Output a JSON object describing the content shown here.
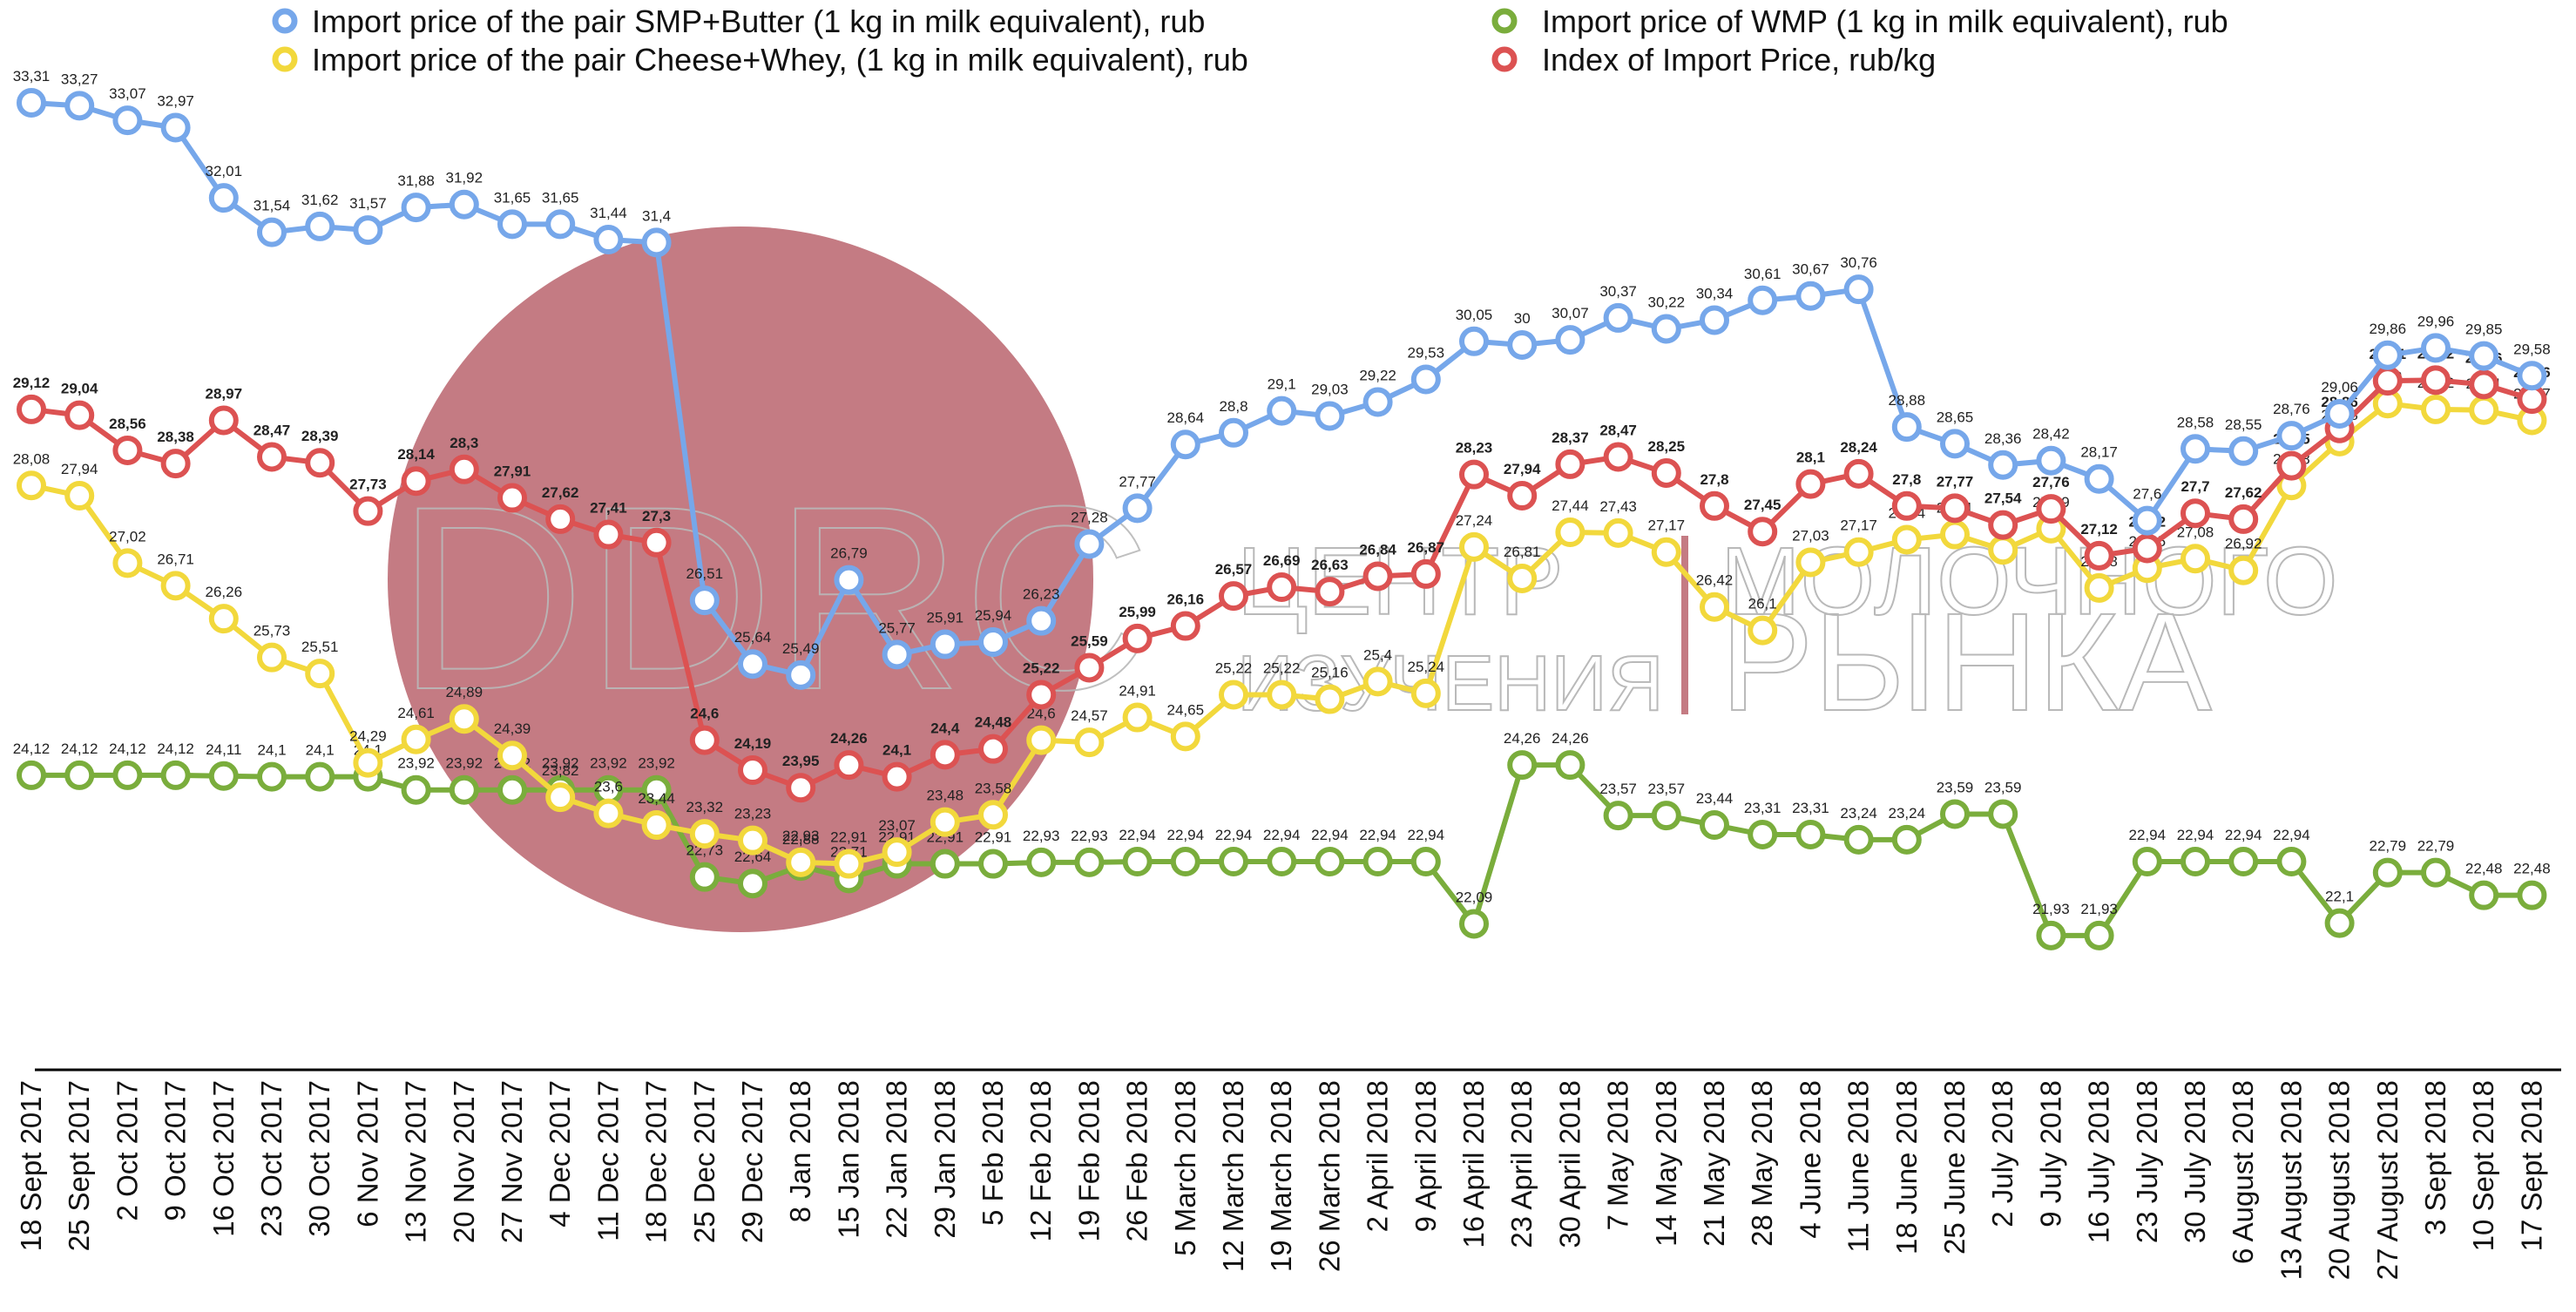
{
  "chart_data": {
    "type": "line",
    "title": "",
    "xlabel": "",
    "ylabel": "",
    "ylim": [
      21.5,
      34
    ],
    "grid": false,
    "legend_position": "top",
    "categories": [
      "18 Sept 2017",
      "25 Sept 2017",
      "2 Oct 2017",
      "9 Oct 2017",
      "16 Oct 2017",
      "23 Oct 2017",
      "30 Oct 2017",
      "6 Nov 2017",
      "13 Nov 2017",
      "20 Nov 2017",
      "27 Nov 2017",
      "4 Dec 2017",
      "11 Dec 2017",
      "18 Dec 2017",
      "25 Dec 2017",
      "29 Dec 2017",
      "8 Jan 2018",
      "15 Jan 2018",
      "22 Jan 2018",
      "29 Jan 2018",
      "5 Feb 2018",
      "12 Feb 2018",
      "19 Feb 2018",
      "26 Feb 2018",
      "5 March 2018",
      "12 March 2018",
      "19 March 2018",
      "26 March 2018",
      "2 April 2018",
      "9 April 2018",
      "16 April 2018",
      "23 April 2018",
      "30 April 2018",
      "7 May 2018",
      "14 May 2018",
      "21 May 2018",
      "28 May 2018",
      "4 June 2018",
      "11 June 2018",
      "18 June 2018",
      "25 June 2018",
      "2 July 2018",
      "9 July 2018",
      "16 July 2018",
      "23 July 2018",
      "30 July 2018",
      "6 August 2018",
      "13 August 2018",
      "20 August 2018",
      "27 August 2018",
      "3 Sept 2018",
      "10 Sept 2018",
      "17 Sept 2018"
    ],
    "series": [
      {
        "name": "Import price of WMP (1 kg in milk equivalent), rub",
        "color": "#7aad3c",
        "bold_labels": false,
        "values": [
          24.12,
          24.12,
          24.12,
          24.12,
          24.11,
          24.1,
          24.1,
          24.1,
          23.92,
          23.92,
          23.92,
          23.92,
          23.92,
          23.92,
          22.73,
          22.64,
          22.88,
          22.71,
          22.91,
          22.91,
          22.91,
          22.93,
          22.93,
          22.94,
          22.94,
          22.94,
          22.94,
          22.94,
          22.94,
          22.94,
          22.09,
          24.26,
          24.26,
          23.57,
          23.57,
          23.44,
          23.31,
          23.31,
          23.24,
          23.24,
          23.59,
          23.59,
          21.93,
          21.93,
          22.94,
          22.94,
          22.94,
          22.94,
          22.1,
          22.79,
          22.79,
          22.48,
          22.48
        ]
      },
      {
        "name": "Import price of the pair Cheese+Whey,  (1 kg in milk equivalent), rub",
        "color": "#f2d83c",
        "bold_labels": false,
        "values": [
          28.08,
          27.94,
          27.02,
          26.71,
          26.26,
          25.73,
          25.51,
          24.29,
          24.61,
          24.89,
          24.39,
          23.82,
          23.6,
          23.44,
          23.32,
          23.23,
          22.93,
          22.91,
          23.07,
          23.48,
          23.58,
          24.6,
          24.57,
          24.91,
          24.65,
          25.22,
          25.22,
          25.16,
          25.4,
          25.24,
          27.24,
          26.81,
          27.44,
          27.43,
          27.17,
          26.42,
          26.1,
          27.03,
          27.17,
          27.34,
          27.41,
          27.2,
          27.49,
          26.68,
          26.95,
          27.08,
          26.92,
          28.08,
          28.68,
          29.2,
          29.12,
          29.11,
          28.97
        ]
      },
      {
        "name": "Index of Import Price, rub/kg",
        "color": "#dc5252",
        "bold_labels": true,
        "values": [
          29.12,
          29.04,
          28.56,
          28.38,
          28.97,
          28.47,
          28.39,
          27.73,
          28.14,
          28.3,
          27.91,
          27.62,
          27.41,
          27.3,
          24.6,
          24.19,
          23.95,
          24.26,
          24.1,
          24.4,
          24.48,
          25.22,
          25.59,
          25.99,
          26.16,
          26.57,
          26.69,
          26.63,
          26.84,
          26.87,
          28.23,
          27.94,
          28.37,
          28.47,
          28.25,
          27.8,
          27.45,
          28.1,
          28.24,
          27.8,
          27.77,
          27.54,
          27.76,
          27.12,
          27.22,
          27.7,
          27.62,
          28.35,
          28.86,
          29.51,
          29.52,
          29.46,
          29.26
        ]
      },
      {
        "name": "Import price of the pair SMP+Butter (1 kg in milk equivalent), rub",
        "color": "#76a7ea",
        "bold_labels": false,
        "values": [
          33.31,
          33.27,
          33.07,
          32.97,
          32.01,
          31.54,
          31.62,
          31.57,
          31.88,
          31.92,
          31.65,
          31.65,
          31.44,
          31.4,
          26.51,
          25.64,
          25.49,
          26.79,
          25.77,
          25.91,
          25.94,
          26.23,
          27.28,
          27.77,
          28.64,
          28.8,
          29.1,
          29.03,
          29.22,
          29.53,
          30.05,
          30,
          30.07,
          30.37,
          30.22,
          30.34,
          30.61,
          30.67,
          30.76,
          28.88,
          28.65,
          28.36,
          28.42,
          28.17,
          27.6,
          28.58,
          28.55,
          28.76,
          29.06,
          29.86,
          29.96,
          29.85,
          29.58
        ]
      }
    ],
    "legend": [
      {
        "series": 3,
        "label": "Import price of the pair SMP+Butter (1 kg in milk equivalent), rub"
      },
      {
        "series": 1,
        "label": "Import price of the pair Cheese+Whey,  (1 kg in milk equivalent), rub"
      },
      {
        "series": 0,
        "label": "Import price of WMP (1 kg in milk equivalent), rub"
      },
      {
        "series": 2,
        "label": "Index of Import Price, rub/kg"
      }
    ]
  },
  "watermark": {
    "logo_text": "DDRC",
    "brand_line_1": "ЦЕНТР",
    "brand_line_2": "ИЗУЧЕНИЯ",
    "brand_line_3": "МОЛОЧНОГО",
    "brand_line_4": "РЫНКА",
    "circle_color": "#c47b83"
  }
}
